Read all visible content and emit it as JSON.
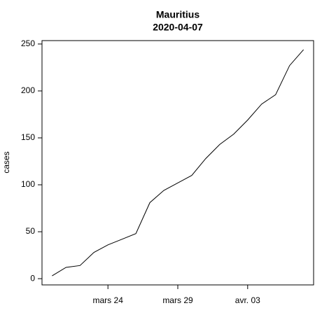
{
  "chart_data": {
    "type": "line",
    "title": "Mauritius",
    "subtitle": "2020-04-07",
    "y_label": "cases",
    "categories": [
      null,
      null,
      null,
      null,
      "mars 24",
      null,
      null,
      null,
      null,
      "mars 29",
      null,
      null,
      null,
      null,
      "avr. 03",
      null,
      null,
      null,
      null
    ],
    "series": [
      {
        "name": "cases",
        "color": "#000000",
        "values": [
          3,
          12,
          14,
          28,
          36,
          42,
          48,
          81,
          94,
          102,
          110,
          128,
          143,
          154,
          169,
          186,
          196,
          227,
          244
        ]
      }
    ],
    "ylim": [
      -6.64,
      253.64
    ],
    "yticks": [
      0,
      50,
      100,
      150,
      200,
      250
    ],
    "grid": false
  }
}
